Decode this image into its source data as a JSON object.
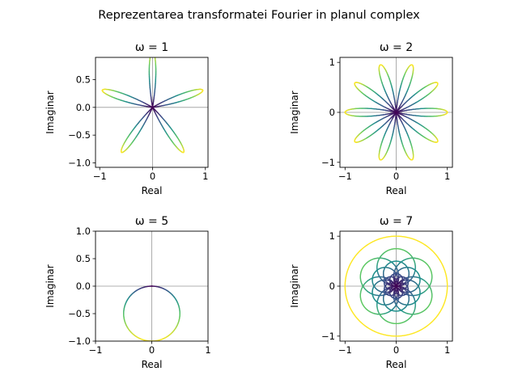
{
  "figure": {
    "suptitle": "Reprezentarea transformatei Fourier in planul complex",
    "colormap": [
      "#440154",
      "#3b528b",
      "#21918c",
      "#5ec962",
      "#fde725"
    ]
  },
  "chart_data": [
    {
      "type": "line",
      "subtitle": "ω = 1",
      "xlabel": "Real",
      "ylabel": "Imaginar",
      "xlim": [
        -1.08,
        1.05
      ],
      "ylim": [
        -1.08,
        0.9
      ],
      "xticks": [
        -1,
        0,
        1
      ],
      "xtick_labels": [
        "−1",
        "0",
        "1"
      ],
      "yticks": [
        -1.0,
        -0.5,
        0.0,
        0.5
      ],
      "ytick_labels": [
        "−1.0",
        "−0.5",
        "0.0",
        "0.5"
      ],
      "curve": "rose",
      "petals": 5,
      "radius": 1.0,
      "petal_width": 0.35,
      "rotation_deg": 90,
      "axis_lines": true,
      "grid": false
    },
    {
      "type": "line",
      "subtitle": "ω = 2",
      "xlabel": "Real",
      "ylabel": "Imaginar",
      "xlim": [
        -1.1,
        1.1
      ],
      "ylim": [
        -1.1,
        1.1
      ],
      "xticks": [
        -1,
        0,
        1
      ],
      "xtick_labels": [
        "−1",
        "0",
        "1"
      ],
      "yticks": [
        -1,
        0,
        1
      ],
      "ytick_labels": [
        "−1",
        "0",
        "1"
      ],
      "curve": "rose",
      "petals": 10,
      "radius": 1.0,
      "petal_width": 0.9,
      "rotation_deg": 0,
      "axis_lines": true,
      "grid": false
    },
    {
      "type": "line",
      "subtitle": "ω = 5",
      "xlabel": "Real",
      "ylabel": "Imaginar",
      "xlim": [
        -1.0,
        1.0
      ],
      "ylim": [
        -1.0,
        1.0
      ],
      "xticks": [
        -1,
        0,
        1
      ],
      "xtick_labels": [
        "−1",
        "0",
        "1"
      ],
      "yticks": [
        -1.0,
        -0.5,
        0.0,
        0.5,
        1.0
      ],
      "ytick_labels": [
        "−1.0",
        "−0.5",
        "0.0",
        "0.5",
        "1.0"
      ],
      "curve": "circle",
      "center": [
        0,
        -0.5
      ],
      "radius": 0.5,
      "axis_lines": true,
      "grid": false
    },
    {
      "type": "line",
      "subtitle": "ω = 7",
      "xlabel": "Real",
      "ylabel": "Imaginar",
      "xlim": [
        -1.1,
        1.1
      ],
      "ylim": [
        -1.1,
        1.1
      ],
      "xticks": [
        -1,
        0,
        1
      ],
      "xtick_labels": [
        "−1",
        "0",
        "1"
      ],
      "yticks": [
        -1,
        0,
        1
      ],
      "ytick_labels": [
        "−1",
        "0",
        "1"
      ],
      "curve": "flower",
      "circles_per_layer": 6,
      "layers": [
        0.25,
        0.5,
        0.75,
        1.0
      ],
      "axis_lines": true,
      "grid": false
    }
  ]
}
